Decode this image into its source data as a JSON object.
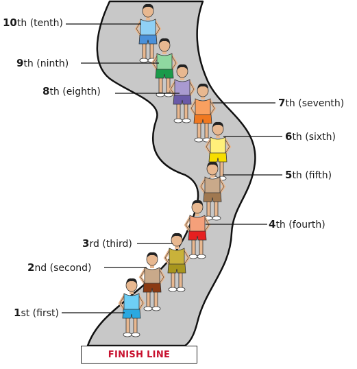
{
  "finish_line": "FINISH LINE",
  "colors": {
    "track": "#c8c8c8",
    "finish_text": "#c8102e"
  },
  "runners": [
    {
      "num": "1",
      "suffix": "st (first)",
      "vest": "#6ecff6",
      "shorts": "#2aa8e0",
      "icon": "runner-icon"
    },
    {
      "num": "2",
      "suffix": "nd (second)",
      "vest": "#c9a98a",
      "shorts": "#8b3a12",
      "icon": "runner-icon"
    },
    {
      "num": "3",
      "suffix": "rd (third)",
      "vest": "#c9b23a",
      "shorts": "#a8961e",
      "icon": "runner-icon"
    },
    {
      "num": "4",
      "suffix": "th (fourth)",
      "vest": "#f5a07a",
      "shorts": "#e62020",
      "icon": "runner-icon"
    },
    {
      "num": "5",
      "suffix": "th (fifth)",
      "vest": "#c9a98a",
      "shorts": "#a07850",
      "icon": "runner-icon"
    },
    {
      "num": "6",
      "suffix": "th (sixth)",
      "vest": "#fff07a",
      "shorts": "#f7dd00",
      "icon": "runner-icon"
    },
    {
      "num": "7",
      "suffix": "th (seventh)",
      "vest": "#f9a060",
      "shorts": "#f07820",
      "icon": "runner-icon"
    },
    {
      "num": "8",
      "suffix": "th (eighth)",
      "vest": "#a99ad0",
      "shorts": "#6a5aa8",
      "icon": "runner-icon"
    },
    {
      "num": "9",
      "suffix": "th (ninth)",
      "vest": "#8fd8a0",
      "shorts": "#1a9a4a",
      "icon": "runner-icon"
    },
    {
      "num": "10",
      "suffix": "th (tenth)",
      "vest": "#8fd0f5",
      "shorts": "#4a90d9",
      "icon": "runner-icon"
    }
  ]
}
